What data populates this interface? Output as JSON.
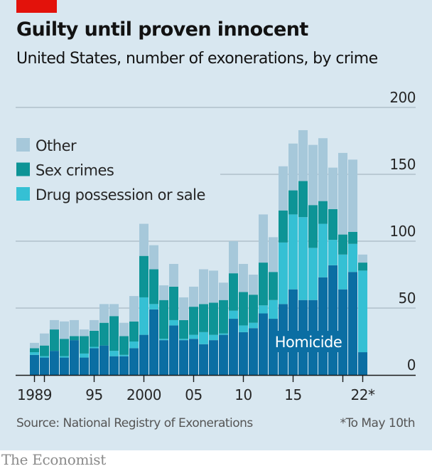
{
  "header": {
    "title": "Guilty until proven innocent",
    "subtitle": "United States, number of exonerations, by crime"
  },
  "footer": {
    "source": "Source: National Registry of Exonerations",
    "footnote": "*To May 10th",
    "brand": "The Economist"
  },
  "colors": {
    "background": "#d8e7f0",
    "brand_red": "#e3120b",
    "homicide": "#0b6ea3",
    "drug": "#35c0d4",
    "sex": "#0d9496",
    "other": "#a6c8da",
    "gridline": "#a9b9c2",
    "axis": "#1a1a1a"
  },
  "chart_data": {
    "type": "bar",
    "stacked": true,
    "title": "Guilty until proven innocent",
    "subtitle": "United States, number of exonerations, by crime",
    "xlabel": "",
    "ylabel": "",
    "ylim": [
      0,
      200
    ],
    "yticks": [
      0,
      50,
      100,
      150,
      200
    ],
    "ytick_labels": [
      "0",
      "50",
      "100",
      "150",
      "200"
    ],
    "y_axis_side": "right",
    "grid": true,
    "categories": [
      "1989",
      "1990",
      "1991",
      "1992",
      "1993",
      "1994",
      "1995",
      "1996",
      "1997",
      "1998",
      "1999",
      "2000",
      "2001",
      "2002",
      "2003",
      "2004",
      "2005",
      "2006",
      "2007",
      "2008",
      "2009",
      "2010",
      "2011",
      "2012",
      "2013",
      "2014",
      "2015",
      "2016",
      "2017",
      "2018",
      "2019",
      "2020",
      "2021",
      "2022"
    ],
    "xtick_marks": [
      "1989",
      "1990",
      "1995",
      "2000",
      "2005",
      "2010",
      "2015",
      "2020",
      "2022"
    ],
    "xtick_labels": [
      {
        "at": "1989",
        "label": "1989"
      },
      {
        "at": "1995",
        "label": "95"
      },
      {
        "at": "2000",
        "label": "2000"
      },
      {
        "at": "2005",
        "label": "05"
      },
      {
        "at": "2010",
        "label": "10"
      },
      {
        "at": "2015",
        "label": "15"
      },
      {
        "at": "2022",
        "label": "22*"
      }
    ],
    "series": [
      {
        "name": "Homicide",
        "key": "homicide",
        "values": [
          15,
          13,
          18,
          13,
          26,
          13,
          20,
          22,
          14,
          14,
          20,
          30,
          49,
          26,
          37,
          26,
          27,
          23,
          26,
          30,
          42,
          32,
          35,
          46,
          42,
          53,
          64,
          56,
          56,
          73,
          82,
          64,
          77,
          17
        ]
      },
      {
        "name": "Drug possession or sale",
        "key": "drug",
        "values": [
          2,
          1,
          0,
          1,
          0,
          3,
          1,
          0,
          4,
          1,
          5,
          28,
          4,
          1,
          4,
          1,
          3,
          9,
          4,
          1,
          6,
          5,
          4,
          6,
          14,
          46,
          56,
          62,
          39,
          40,
          19,
          26,
          21,
          61
        ]
      },
      {
        "name": "Sex crimes",
        "key": "sex",
        "values": [
          3,
          8,
          16,
          13,
          3,
          13,
          12,
          17,
          26,
          14,
          15,
          31,
          26,
          29,
          25,
          14,
          21,
          21,
          24,
          25,
          28,
          25,
          21,
          32,
          21,
          24,
          18,
          27,
          32,
          17,
          23,
          15,
          9,
          6
        ]
      },
      {
        "name": "Other",
        "key": "other",
        "values": [
          4,
          9,
          7,
          13,
          12,
          5,
          8,
          14,
          9,
          10,
          19,
          24,
          18,
          11,
          17,
          17,
          15,
          26,
          24,
          13,
          24,
          21,
          15,
          36,
          26,
          33,
          35,
          38,
          45,
          47,
          31,
          61,
          54,
          6
        ]
      }
    ],
    "legend": {
      "placement": "top-left",
      "entries": [
        {
          "label": "Other",
          "key": "other"
        },
        {
          "label": "Sex crimes",
          "key": "sex"
        },
        {
          "label": "Drug possession or sale",
          "key": "drug"
        }
      ]
    },
    "annotations": [
      {
        "text": "Homicide",
        "series": "homicide",
        "near": "2015-2021"
      }
    ]
  }
}
